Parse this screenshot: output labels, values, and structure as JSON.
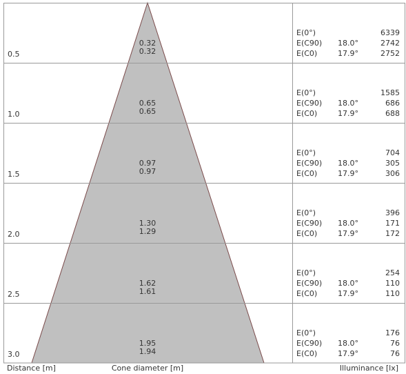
{
  "labels": {
    "e0": "E(0°)",
    "c90": "E(C90)",
    "c0": "E(C0)"
  },
  "footer": {
    "distance": "Distance [m]",
    "diameter": "Cone diameter [m]",
    "illuminance": "Illuminance [lx]"
  },
  "rows": [
    {
      "distance": "0.5",
      "diameter_c90": "0.32",
      "diameter_c0": "0.32",
      "e0": "6339",
      "c90_angle": "18.0°",
      "c90_value": "2742",
      "c0_angle": "17.9°",
      "c0_value": "2752"
    },
    {
      "distance": "1.0",
      "diameter_c90": "0.65",
      "diameter_c0": "0.65",
      "e0": "1585",
      "c90_angle": "18.0°",
      "c90_value": "686",
      "c0_angle": "17.9°",
      "c0_value": "688"
    },
    {
      "distance": "1.5",
      "diameter_c90": "0.97",
      "diameter_c0": "0.97",
      "e0": "704",
      "c90_angle": "18.0°",
      "c90_value": "305",
      "c0_angle": "17.9°",
      "c0_value": "306"
    },
    {
      "distance": "2.0",
      "diameter_c90": "1.30",
      "diameter_c0": "1.29",
      "e0": "396",
      "c90_angle": "18.0°",
      "c90_value": "171",
      "c0_angle": "17.9°",
      "c0_value": "172"
    },
    {
      "distance": "2.5",
      "diameter_c90": "1.62",
      "diameter_c0": "1.61",
      "e0": "254",
      "c90_angle": "18.0°",
      "c90_value": "110",
      "c0_angle": "17.9°",
      "c0_value": "110"
    },
    {
      "distance": "3.0",
      "diameter_c90": "1.95",
      "diameter_c0": "1.94",
      "e0": "176",
      "c90_angle": "18.0°",
      "c90_value": "76",
      "c0_angle": "17.9°",
      "c0_value": "76"
    }
  ]
}
